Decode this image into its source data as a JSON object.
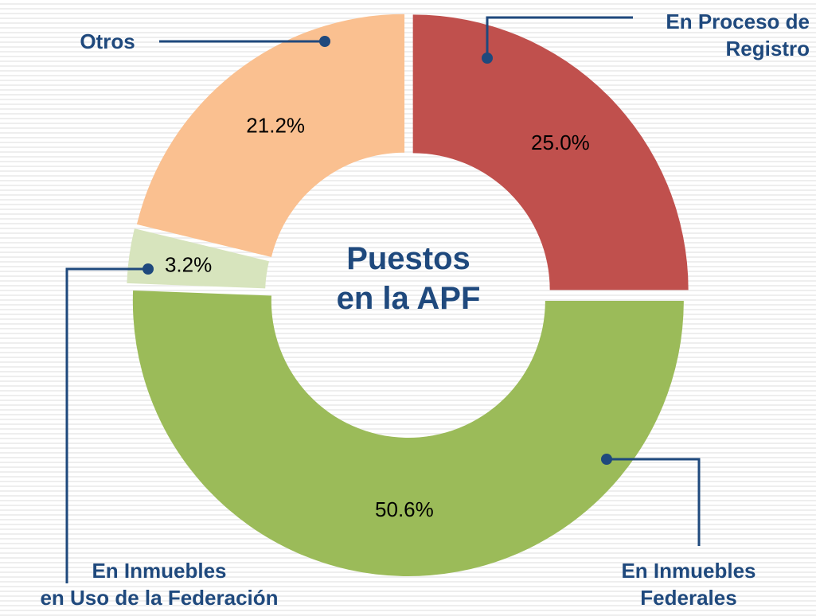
{
  "chart_data": {
    "type": "donut",
    "center_text": "Puestos\nen la APF",
    "categories": [
      "En Proceso de\nRegistro",
      "En Inmuebles\nFederales",
      "En Inmuebles\nen Uso de la Federación",
      "Otros"
    ],
    "values": [
      25.0,
      50.6,
      3.2,
      21.2
    ],
    "value_labels": [
      "25.0%",
      "50.6%",
      "3.2%",
      "21.2%"
    ],
    "colors": [
      "#c0504d",
      "#9bbb59",
      "#d7e4bd",
      "#fac090"
    ]
  }
}
